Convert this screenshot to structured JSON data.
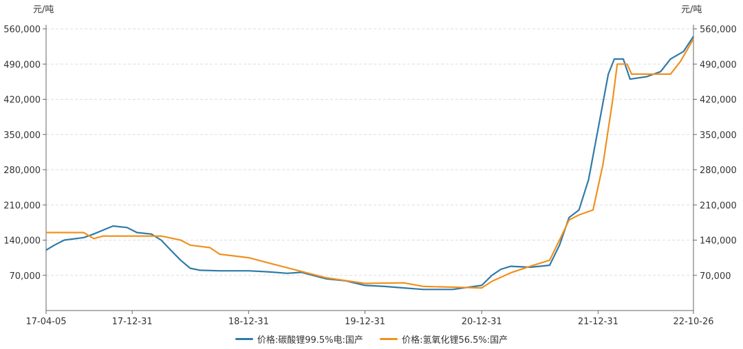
{
  "chart_data": {
    "type": "line",
    "y_unit_left": "元/吨",
    "y_unit_right": "元/吨",
    "ylim": [
      0,
      560000
    ],
    "y_ticks": [
      70000,
      140000,
      210000,
      280000,
      350000,
      420000,
      490000,
      560000
    ],
    "y_tick_labels": [
      "70,000",
      "140,000",
      "210,000",
      "280,000",
      "350,000",
      "420,000",
      "490,000",
      "560,000"
    ],
    "xlim": [
      "2017-04-05",
      "2022-10-26"
    ],
    "x_ticks": [
      "2017-04-05",
      "2017-12-31",
      "2018-12-31",
      "2019-12-31",
      "2020-12-31",
      "2021-12-31",
      "2022-10-26"
    ],
    "x_tick_labels": [
      "17-04-05",
      "17-12-31",
      "18-12-31",
      "19-12-31",
      "20-12-31",
      "21-12-31",
      "22-10-26"
    ],
    "grid": true,
    "legend_position": "bottom",
    "series": [
      {
        "name": "价格:碳酸锂99.5%电:国产",
        "color": "#2e7aa8",
        "points": [
          [
            "2017-04-05",
            120000
          ],
          [
            "2017-05-01",
            130000
          ],
          [
            "2017-06-01",
            140000
          ],
          [
            "2017-08-01",
            145000
          ],
          [
            "2017-09-01",
            152000
          ],
          [
            "2017-10-01",
            160000
          ],
          [
            "2017-11-01",
            168000
          ],
          [
            "2017-12-15",
            165000
          ],
          [
            "2018-01-15",
            155000
          ],
          [
            "2018-03-01",
            152000
          ],
          [
            "2018-04-01",
            140000
          ],
          [
            "2018-05-01",
            120000
          ],
          [
            "2018-06-01",
            100000
          ],
          [
            "2018-07-01",
            84000
          ],
          [
            "2018-08-01",
            80000
          ],
          [
            "2018-10-01",
            79000
          ],
          [
            "2018-12-31",
            79000
          ],
          [
            "2019-03-01",
            77000
          ],
          [
            "2019-05-01",
            74000
          ],
          [
            "2019-06-15",
            76000
          ],
          [
            "2019-08-01",
            68000
          ],
          [
            "2019-09-01",
            63000
          ],
          [
            "2019-11-01",
            59000
          ],
          [
            "2019-12-31",
            50000
          ],
          [
            "2020-03-01",
            48000
          ],
          [
            "2020-05-01",
            45000
          ],
          [
            "2020-07-01",
            42000
          ],
          [
            "2020-10-01",
            42000
          ],
          [
            "2020-12-31",
            50000
          ],
          [
            "2021-02-01",
            70000
          ],
          [
            "2021-03-01",
            82000
          ],
          [
            "2021-04-01",
            88000
          ],
          [
            "2021-06-01",
            86000
          ],
          [
            "2021-08-01",
            90000
          ],
          [
            "2021-09-01",
            130000
          ],
          [
            "2021-10-01",
            185000
          ],
          [
            "2021-11-01",
            200000
          ],
          [
            "2021-12-01",
            260000
          ],
          [
            "2022-01-01",
            365000
          ],
          [
            "2022-02-01",
            470000
          ],
          [
            "2022-02-20",
            500000
          ],
          [
            "2022-03-20",
            500000
          ],
          [
            "2022-04-10",
            460000
          ],
          [
            "2022-06-01",
            465000
          ],
          [
            "2022-07-15",
            475000
          ],
          [
            "2022-08-15",
            500000
          ],
          [
            "2022-09-25",
            515000
          ],
          [
            "2022-10-26",
            545000
          ]
        ]
      },
      {
        "name": "价格:氢氧化锂56.5%:国产",
        "color": "#f0901e",
        "points": [
          [
            "2017-04-05",
            155000
          ],
          [
            "2017-08-01",
            155000
          ],
          [
            "2017-09-01",
            143000
          ],
          [
            "2017-10-01",
            148000
          ],
          [
            "2018-04-01",
            148000
          ],
          [
            "2018-06-01",
            140000
          ],
          [
            "2018-07-01",
            130000
          ],
          [
            "2018-09-01",
            125000
          ],
          [
            "2018-10-01",
            112000
          ],
          [
            "2018-12-31",
            105000
          ],
          [
            "2019-03-01",
            95000
          ],
          [
            "2019-06-01",
            80000
          ],
          [
            "2019-09-01",
            65000
          ],
          [
            "2019-12-31",
            54000
          ],
          [
            "2020-05-01",
            55000
          ],
          [
            "2020-07-01",
            48000
          ],
          [
            "2020-12-31",
            45000
          ],
          [
            "2021-02-01",
            58000
          ],
          [
            "2021-04-01",
            75000
          ],
          [
            "2021-06-01",
            88000
          ],
          [
            "2021-08-01",
            100000
          ],
          [
            "2021-09-01",
            140000
          ],
          [
            "2021-10-01",
            180000
          ],
          [
            "2021-11-01",
            190000
          ],
          [
            "2021-12-15",
            200000
          ],
          [
            "2022-01-15",
            290000
          ],
          [
            "2022-02-15",
            420000
          ],
          [
            "2022-03-01",
            490000
          ],
          [
            "2022-04-01",
            490000
          ],
          [
            "2022-04-15",
            470000
          ],
          [
            "2022-08-15",
            470000
          ],
          [
            "2022-09-15",
            495000
          ],
          [
            "2022-10-26",
            540000
          ]
        ]
      }
    ]
  }
}
